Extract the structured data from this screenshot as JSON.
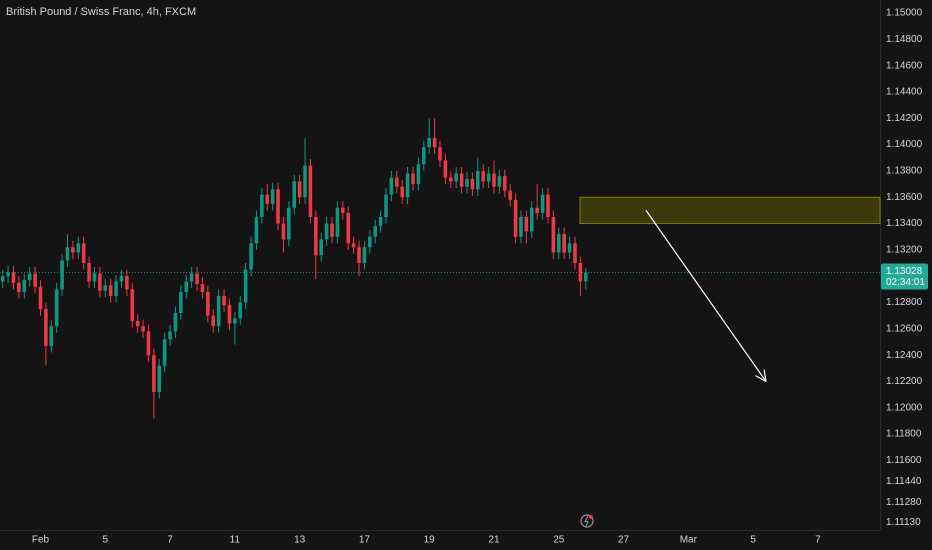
{
  "chart_data": {
    "type": "candlestick",
    "title": "British Pound / Swiss Franc, 4h, FXCM",
    "up_color": "#089981",
    "down_color": "#f23645",
    "grid": false,
    "ylim": [
      1.11071,
      1.15099
    ],
    "yticks": [
      {
        "value": 1.15,
        "label": "1.15000"
      },
      {
        "value": 1.148,
        "label": "1.14800"
      },
      {
        "value": 1.146,
        "label": "1.14600"
      },
      {
        "value": 1.144,
        "label": "1.14400"
      },
      {
        "value": 1.142,
        "label": "1.14200"
      },
      {
        "value": 1.14,
        "label": "1.14000"
      },
      {
        "value": 1.138,
        "label": "1.13800"
      },
      {
        "value": 1.136,
        "label": "1.13600"
      },
      {
        "value": 1.134,
        "label": "1.13400"
      },
      {
        "value": 1.132,
        "label": "1.13200"
      },
      {
        "value": 1.128,
        "label": "1.12800"
      },
      {
        "value": 1.126,
        "label": "1.12600"
      },
      {
        "value": 1.124,
        "label": "1.12400"
      },
      {
        "value": 1.122,
        "label": "1.12200"
      },
      {
        "value": 1.12,
        "label": "1.12000"
      },
      {
        "value": 1.118,
        "label": "1.11800"
      },
      {
        "value": 1.116,
        "label": "1.11600"
      },
      {
        "value": 1.1144,
        "label": "1.11440"
      },
      {
        "value": 1.1128,
        "label": "1.11280"
      },
      {
        "value": 1.1113,
        "label": "1.11130"
      }
    ],
    "categories": [
      null,
      null,
      null,
      null,
      null,
      null,
      null,
      "Feb",
      null,
      null,
      null,
      null,
      null,
      null,
      null,
      null,
      null,
      null,
      null,
      "5",
      null,
      null,
      null,
      null,
      null,
      null,
      null,
      null,
      null,
      null,
      null,
      "7",
      null,
      null,
      null,
      null,
      null,
      null,
      null,
      null,
      null,
      null,
      null,
      "11",
      null,
      null,
      null,
      null,
      null,
      null,
      null,
      null,
      null,
      null,
      null,
      "13",
      null,
      null,
      null,
      null,
      null,
      null,
      null,
      null,
      null,
      null,
      null,
      "17",
      null,
      null,
      null,
      null,
      null,
      null,
      null,
      null,
      null,
      null,
      null,
      "19",
      null,
      null,
      null,
      null,
      null,
      null,
      null,
      null,
      null,
      null,
      null,
      "21",
      null,
      null,
      null,
      null,
      null,
      null,
      null,
      null,
      null,
      null,
      null,
      "25",
      null,
      null,
      null,
      null,
      null,
      null,
      null,
      null,
      null,
      null,
      null,
      "27",
      null,
      null,
      null,
      null,
      null,
      null,
      null,
      null,
      null,
      null,
      null,
      "Mar",
      null,
      null,
      null,
      null,
      null,
      null,
      null,
      null,
      null,
      null,
      null,
      "5",
      null,
      null,
      null,
      null,
      null,
      null,
      null,
      null,
      null,
      null,
      null,
      "7",
      null,
      null,
      null,
      null,
      null,
      null,
      null,
      null,
      null,
      null,
      null
    ],
    "ohlc": [
      [
        1.1296,
        1.1305,
        1.1291,
        1.13
      ],
      [
        1.13,
        1.1308,
        1.1295,
        1.1303
      ],
      [
        1.1303,
        1.1308,
        1.129,
        1.1295
      ],
      [
        1.1295,
        1.13,
        1.1283,
        1.1288
      ],
      [
        1.1288,
        1.1302,
        1.1283,
        1.1297
      ],
      [
        1.1297,
        1.1307,
        1.1292,
        1.1302
      ],
      [
        1.1302,
        1.1307,
        1.1287,
        1.1292
      ],
      [
        1.1292,
        1.1297,
        1.127,
        1.1275
      ],
      [
        1.1275,
        1.128,
        1.1232,
        1.1247
      ],
      [
        1.1247,
        1.1267,
        1.1242,
        1.1262
      ],
      [
        1.1262,
        1.1295,
        1.1257,
        1.129
      ],
      [
        1.129,
        1.1317,
        1.1285,
        1.1312
      ],
      [
        1.1312,
        1.1332,
        1.1307,
        1.1322
      ],
      [
        1.1322,
        1.1327,
        1.1313,
        1.1318
      ],
      [
        1.1318,
        1.133,
        1.1313,
        1.1325
      ],
      [
        1.1325,
        1.133,
        1.1305,
        1.131
      ],
      [
        1.131,
        1.1315,
        1.1291,
        1.1296
      ],
      [
        1.1296,
        1.1307,
        1.1291,
        1.1302
      ],
      [
        1.1302,
        1.1307,
        1.1284,
        1.1289
      ],
      [
        1.1289,
        1.1298,
        1.1284,
        1.1293
      ],
      [
        1.1293,
        1.1298,
        1.128,
        1.1285
      ],
      [
        1.1285,
        1.1301,
        1.128,
        1.1296
      ],
      [
        1.1296,
        1.1305,
        1.1291,
        1.13
      ],
      [
        1.13,
        1.1305,
        1.1285,
        1.129
      ],
      [
        1.129,
        1.1295,
        1.1261,
        1.1266
      ],
      [
        1.1266,
        1.1271,
        1.1257,
        1.1262
      ],
      [
        1.1262,
        1.1267,
        1.1253,
        1.1258
      ],
      [
        1.1258,
        1.1263,
        1.1235,
        1.124
      ],
      [
        1.124,
        1.1245,
        1.1192,
        1.1212
      ],
      [
        1.1212,
        1.1237,
        1.1207,
        1.1232
      ],
      [
        1.1232,
        1.1257,
        1.1227,
        1.1252
      ],
      [
        1.1252,
        1.1263,
        1.1247,
        1.1258
      ],
      [
        1.1258,
        1.1277,
        1.1253,
        1.1272
      ],
      [
        1.1272,
        1.1293,
        1.1267,
        1.1288
      ],
      [
        1.1288,
        1.1301,
        1.1283,
        1.1296
      ],
      [
        1.1296,
        1.1307,
        1.1291,
        1.1302
      ],
      [
        1.1302,
        1.1307,
        1.1289,
        1.1294
      ],
      [
        1.1294,
        1.1299,
        1.1283,
        1.1288
      ],
      [
        1.1288,
        1.1293,
        1.1265,
        1.127
      ],
      [
        1.127,
        1.1275,
        1.1257,
        1.1262
      ],
      [
        1.1262,
        1.129,
        1.1257,
        1.1285
      ],
      [
        1.1285,
        1.129,
        1.1273,
        1.1278
      ],
      [
        1.1278,
        1.1283,
        1.1259,
        1.1264
      ],
      [
        1.1264,
        1.1273,
        1.1248,
        1.1268
      ],
      [
        1.1268,
        1.1285,
        1.1263,
        1.128
      ],
      [
        1.128,
        1.131,
        1.1275,
        1.1305
      ],
      [
        1.1305,
        1.133,
        1.13,
        1.1325
      ],
      [
        1.1325,
        1.135,
        1.132,
        1.1345
      ],
      [
        1.1345,
        1.1367,
        1.134,
        1.1362
      ],
      [
        1.1362,
        1.137,
        1.135,
        1.1355
      ],
      [
        1.1355,
        1.1371,
        1.135,
        1.1366
      ],
      [
        1.1366,
        1.1371,
        1.1335,
        1.134
      ],
      [
        1.134,
        1.1345,
        1.1318,
        1.1328
      ],
      [
        1.1328,
        1.1357,
        1.1323,
        1.1352
      ],
      [
        1.1352,
        1.1377,
        1.1347,
        1.1372
      ],
      [
        1.1372,
        1.1377,
        1.1355,
        1.136
      ],
      [
        1.136,
        1.1405,
        1.1355,
        1.1384
      ],
      [
        1.1384,
        1.1389,
        1.134,
        1.1345
      ],
      [
        1.1345,
        1.135,
        1.1298,
        1.1316
      ],
      [
        1.1316,
        1.1333,
        1.1311,
        1.1328
      ],
      [
        1.1328,
        1.1345,
        1.1323,
        1.134
      ],
      [
        1.134,
        1.1345,
        1.1325,
        1.133
      ],
      [
        1.133,
        1.1357,
        1.1325,
        1.1352
      ],
      [
        1.1352,
        1.1357,
        1.1343,
        1.1348
      ],
      [
        1.1348,
        1.1353,
        1.132,
        1.1325
      ],
      [
        1.1325,
        1.133,
        1.1317,
        1.1322
      ],
      [
        1.1322,
        1.1327,
        1.13,
        1.131
      ],
      [
        1.131,
        1.1327,
        1.1305,
        1.1322
      ],
      [
        1.1322,
        1.1335,
        1.1317,
        1.133
      ],
      [
        1.133,
        1.1343,
        1.1325,
        1.1338
      ],
      [
        1.1338,
        1.135,
        1.1333,
        1.1345
      ],
      [
        1.1345,
        1.1367,
        1.134,
        1.1362
      ],
      [
        1.1362,
        1.138,
        1.1357,
        1.1375
      ],
      [
        1.1375,
        1.138,
        1.1363,
        1.1368
      ],
      [
        1.1368,
        1.1373,
        1.1355,
        1.136
      ],
      [
        1.136,
        1.1383,
        1.1355,
        1.1378
      ],
      [
        1.1378,
        1.1383,
        1.1365,
        1.137
      ],
      [
        1.137,
        1.139,
        1.1365,
        1.1385
      ],
      [
        1.1385,
        1.1403,
        1.138,
        1.1398
      ],
      [
        1.1398,
        1.142,
        1.1393,
        1.1405
      ],
      [
        1.1405,
        1.142,
        1.1393,
        1.1398
      ],
      [
        1.1398,
        1.1403,
        1.1383,
        1.1388
      ],
      [
        1.1388,
        1.1393,
        1.137,
        1.1375
      ],
      [
        1.1375,
        1.138,
        1.1367,
        1.1372
      ],
      [
        1.1372,
        1.1383,
        1.1367,
        1.1378
      ],
      [
        1.1378,
        1.1383,
        1.1363,
        1.1368
      ],
      [
        1.1368,
        1.1379,
        1.1363,
        1.1374
      ],
      [
        1.1374,
        1.1379,
        1.1361,
        1.1366
      ],
      [
        1.1366,
        1.139,
        1.1361,
        1.138
      ],
      [
        1.138,
        1.1385,
        1.1367,
        1.1372
      ],
      [
        1.1372,
        1.1383,
        1.1367,
        1.1378
      ],
      [
        1.1378,
        1.1388,
        1.1363,
        1.1368
      ],
      [
        1.1368,
        1.1381,
        1.1363,
        1.1376
      ],
      [
        1.1376,
        1.1381,
        1.136,
        1.1365
      ],
      [
        1.1365,
        1.137,
        1.1353,
        1.1358
      ],
      [
        1.1358,
        1.1363,
        1.1325,
        1.133
      ],
      [
        1.133,
        1.135,
        1.1325,
        1.1345
      ],
      [
        1.1345,
        1.135,
        1.1325,
        1.1334
      ],
      [
        1.1334,
        1.1357,
        1.1329,
        1.1352
      ],
      [
        1.1352,
        1.137,
        1.1343,
        1.1348
      ],
      [
        1.1348,
        1.1367,
        1.1343,
        1.1362
      ],
      [
        1.1362,
        1.1367,
        1.134,
        1.1345
      ],
      [
        1.1345,
        1.135,
        1.1313,
        1.1318
      ],
      [
        1.1318,
        1.1337,
        1.1313,
        1.1332
      ],
      [
        1.1332,
        1.1337,
        1.1313,
        1.1318
      ],
      [
        1.1318,
        1.133,
        1.1313,
        1.1325
      ],
      [
        1.1325,
        1.133,
        1.1305,
        1.131
      ],
      [
        1.131,
        1.1315,
        1.1285,
        1.1296
      ],
      [
        1.1296,
        1.1306,
        1.129,
        1.13028
      ],
      null,
      null,
      null,
      null,
      null,
      null,
      null,
      null,
      null,
      null,
      null,
      null,
      null,
      null,
      null,
      null,
      null,
      null,
      null,
      null,
      null,
      null,
      null,
      null,
      null,
      null,
      null,
      null,
      null,
      null,
      null,
      null,
      null,
      null,
      null,
      null,
      null,
      null,
      null,
      null,
      null,
      null,
      null,
      null,
      null,
      null,
      null,
      null,
      null,
      null,
      null,
      null,
      null,
      null
    ],
    "last_price": 1.13028,
    "countdown": "02:34:01",
    "price_color": "#22ab94",
    "zone": {
      "low": 1.134,
      "high": 1.136,
      "color": "#808000"
    },
    "arrow": {
      "from": 1.135,
      "to": 1.122,
      "color": "#ffffff"
    }
  }
}
